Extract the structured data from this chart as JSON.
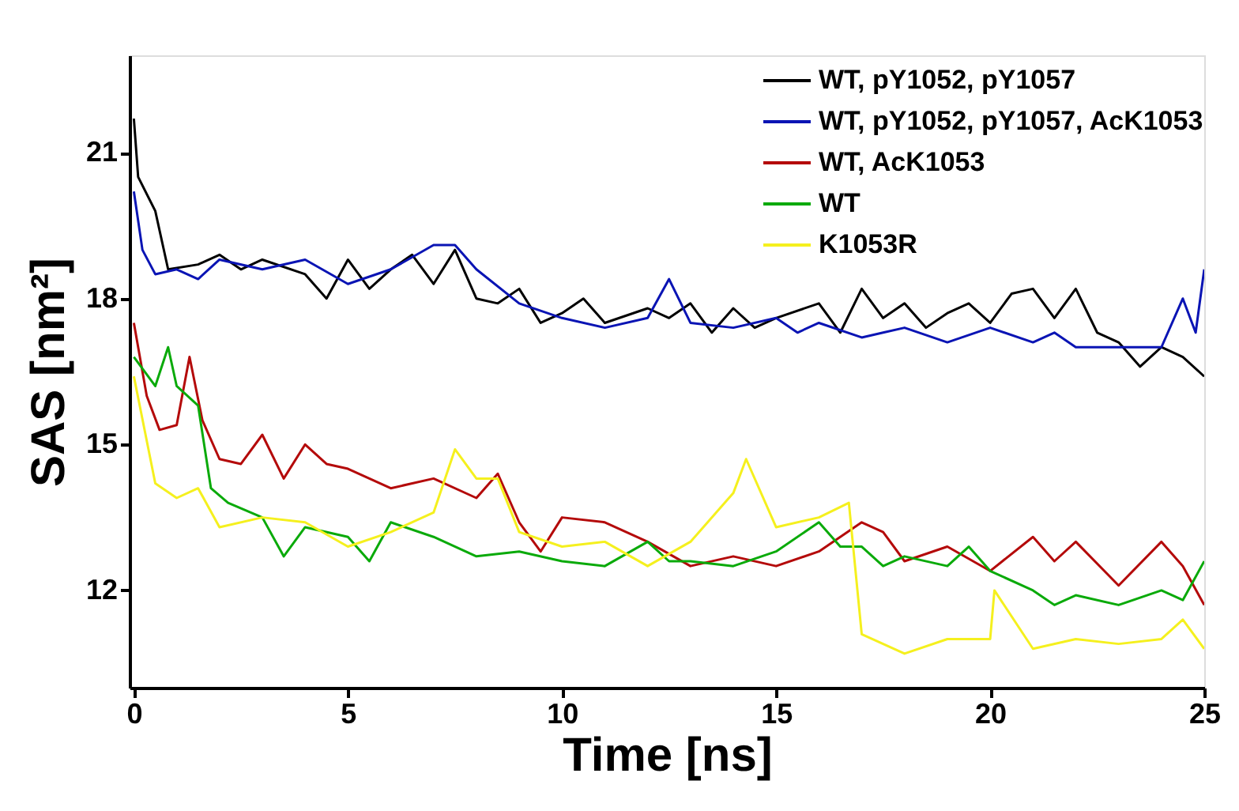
{
  "chart_data": {
    "type": "line",
    "xlabel": "Time [ns]",
    "ylabel": "SAS [nm²]",
    "xlim": [
      -0.1,
      25
    ],
    "ylim": [
      10,
      23
    ],
    "xticks": [
      0,
      5,
      10,
      15,
      20,
      25
    ],
    "yticks": [
      12,
      15,
      18,
      21
    ],
    "grid": false,
    "legend": "top right",
    "marker": "none",
    "line_style": "solid",
    "series": [
      {
        "name": "WT, pY1052, pY1057",
        "color": "#000000",
        "x": [
          0,
          0.1,
          0.5,
          0.8,
          1.5,
          2,
          2.5,
          3,
          4,
          4.5,
          5,
          5.5,
          6,
          6.5,
          7,
          7.5,
          8,
          8.5,
          9,
          9.5,
          10,
          10.5,
          11,
          12,
          12.5,
          13,
          13.5,
          14,
          14.5,
          15,
          16,
          16.5,
          17,
          17.5,
          18,
          18.5,
          19,
          19.5,
          20,
          20.5,
          21,
          21.5,
          22,
          22.5,
          23,
          23.5,
          24,
          24.5,
          25
        ],
        "values": [
          21.7,
          20.5,
          19.8,
          18.6,
          18.7,
          18.9,
          18.6,
          18.8,
          18.5,
          18.0,
          18.8,
          18.2,
          18.6,
          18.9,
          18.3,
          19.0,
          18.0,
          17.9,
          18.2,
          17.5,
          17.7,
          18.0,
          17.5,
          17.8,
          17.6,
          17.9,
          17.3,
          17.8,
          17.4,
          17.6,
          17.9,
          17.3,
          18.2,
          17.6,
          17.9,
          17.4,
          17.7,
          17.9,
          17.5,
          18.1,
          18.2,
          17.6,
          18.2,
          17.3,
          17.1,
          16.6,
          17.0,
          16.8,
          16.4
        ]
      },
      {
        "name": "WT, pY1052, pY1057, AcK1053",
        "color": "#0a14b4",
        "x": [
          0,
          0.2,
          0.5,
          1,
          1.5,
          2,
          3,
          4,
          5,
          6,
          7,
          7.5,
          8,
          9,
          10,
          11,
          12,
          12.5,
          13,
          14,
          15,
          15.5,
          16,
          17,
          17.5,
          18,
          19,
          20,
          21,
          21.5,
          22,
          23,
          24,
          24.5,
          24.8,
          25
        ],
        "values": [
          20.2,
          19.0,
          18.5,
          18.6,
          18.4,
          18.8,
          18.6,
          18.8,
          18.3,
          18.6,
          19.1,
          19.1,
          18.6,
          17.9,
          17.6,
          17.4,
          17.6,
          18.4,
          17.5,
          17.4,
          17.6,
          17.3,
          17.5,
          17.2,
          17.3,
          17.4,
          17.1,
          17.4,
          17.1,
          17.3,
          17.0,
          17.0,
          17.0,
          18.0,
          17.3,
          18.6
        ]
      },
      {
        "name": "WT, AcK1053",
        "color": "#b40a0a",
        "x": [
          0,
          0.3,
          0.6,
          1,
          1.3,
          1.6,
          2,
          2.5,
          3,
          3.5,
          4,
          4.5,
          5,
          6,
          7,
          8,
          8.5,
          9,
          9.5,
          10,
          11,
          12,
          13,
          14,
          15,
          16,
          17,
          17.5,
          18,
          19,
          20,
          21,
          21.5,
          22,
          23,
          24,
          24.5,
          25
        ],
        "values": [
          17.5,
          16.0,
          15.3,
          15.4,
          16.8,
          15.5,
          14.7,
          14.6,
          15.2,
          14.3,
          15.0,
          14.6,
          14.5,
          14.1,
          14.3,
          13.9,
          14.4,
          13.4,
          12.8,
          13.5,
          13.4,
          13.0,
          12.5,
          12.7,
          12.5,
          12.8,
          13.4,
          13.2,
          12.6,
          12.9,
          12.4,
          13.1,
          12.6,
          13.0,
          12.1,
          13.0,
          12.5,
          11.7
        ]
      },
      {
        "name": "WT",
        "color": "#0aaa0a",
        "x": [
          0,
          0.5,
          0.8,
          1,
          1.5,
          1.8,
          2.2,
          3,
          3.5,
          4,
          5,
          5.5,
          6,
          7,
          8,
          9,
          10,
          11,
          12,
          12.5,
          13,
          14,
          15,
          16,
          16.5,
          17,
          17.5,
          18,
          19,
          19.5,
          20,
          21,
          21.5,
          22,
          23,
          24,
          24.5,
          25
        ],
        "values": [
          16.8,
          16.2,
          17.0,
          16.2,
          15.8,
          14.1,
          13.8,
          13.5,
          12.7,
          13.3,
          13.1,
          12.6,
          13.4,
          13.1,
          12.7,
          12.8,
          12.6,
          12.5,
          13.0,
          12.6,
          12.6,
          12.5,
          12.8,
          13.4,
          12.9,
          12.9,
          12.5,
          12.7,
          12.5,
          12.9,
          12.4,
          12.0,
          11.7,
          11.9,
          11.7,
          12.0,
          11.8,
          12.6
        ]
      },
      {
        "name": "K1053R",
        "color": "#f5f01e",
        "x": [
          0,
          0.5,
          1,
          1.5,
          2,
          3,
          4,
          5,
          6,
          7,
          7.5,
          8,
          8.5,
          9,
          10,
          11,
          12,
          13,
          14,
          14.3,
          15,
          16,
          16.7,
          17,
          18,
          19,
          20,
          20.1,
          21,
          22,
          23,
          24,
          24.5,
          25
        ],
        "values": [
          16.4,
          14.2,
          13.9,
          14.1,
          13.3,
          13.5,
          13.4,
          12.9,
          13.2,
          13.6,
          14.9,
          14.3,
          14.3,
          13.2,
          12.9,
          13.0,
          12.5,
          13.0,
          14.0,
          14.7,
          13.3,
          13.5,
          13.8,
          11.1,
          10.7,
          11.0,
          11.0,
          12.0,
          10.8,
          11.0,
          10.9,
          11.0,
          11.4,
          10.8
        ]
      }
    ]
  }
}
